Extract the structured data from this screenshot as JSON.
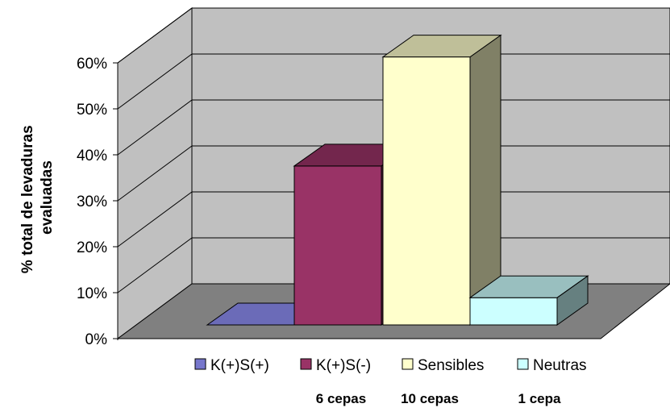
{
  "chart_data": {
    "type": "bar",
    "style": "3d-column",
    "ylabel_lines": [
      "% total de levaduras",
      "evaluadas"
    ],
    "ylim": [
      0,
      0.6
    ],
    "yticks": [
      "0%",
      "10%",
      "20%",
      "30%",
      "40%",
      "50%",
      "60%"
    ],
    "grid": true,
    "legend_position": "bottom",
    "series": [
      {
        "name": "K(+)S(+)",
        "value": 0.0,
        "color": "#7777cc"
      },
      {
        "name": "K(+)S(-)",
        "value": 0.35,
        "color": "#993366"
      },
      {
        "name": "Sensibles",
        "value": 0.59,
        "color": "#ffffcc"
      },
      {
        "name": "Neutras",
        "value": 0.06,
        "color": "#ccffff"
      }
    ],
    "counts": [
      "6 cepas",
      "10 cepas",
      "1 cepa"
    ]
  }
}
